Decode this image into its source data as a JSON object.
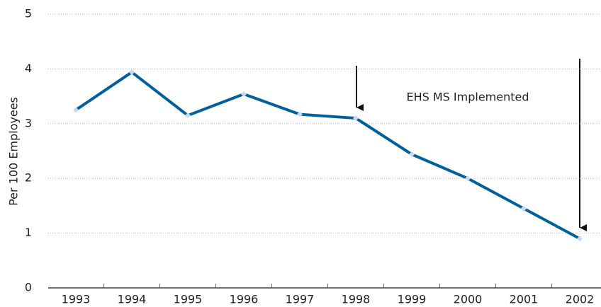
{
  "chart_data": {
    "type": "line",
    "y_label": "Per 100 Employees",
    "annotation": "EHS MS Implemented",
    "categories": [
      "1993",
      "1994",
      "1995",
      "1996",
      "1997",
      "1998",
      "1999",
      "2000",
      "2001",
      "2002"
    ],
    "values": [
      3.25,
      3.94,
      3.15,
      3.54,
      3.17,
      3.1,
      2.44,
      2.0,
      1.45,
      0.9
    ],
    "color": "#00609c",
    "marker_color": "#c9d9ee",
    "ylim": [
      0,
      5
    ],
    "yticks": [
      0,
      1,
      2,
      3,
      4,
      5
    ],
    "grid": true
  }
}
